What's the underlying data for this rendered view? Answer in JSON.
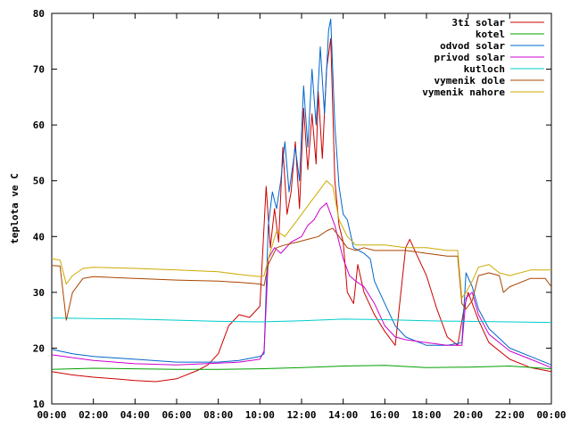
{
  "chart_data": {
    "type": "line",
    "title": "",
    "xlabel": "",
    "ylabel": "teplota ve C",
    "xlim": [
      0,
      24
    ],
    "ylim": [
      10,
      80
    ],
    "x_ticks": [
      {
        "value": 0,
        "label": "00:00"
      },
      {
        "value": 2,
        "label": "02:00"
      },
      {
        "value": 4,
        "label": "04:00"
      },
      {
        "value": 6,
        "label": "06:00"
      },
      {
        "value": 8,
        "label": "08:00"
      },
      {
        "value": 10,
        "label": "10:00"
      },
      {
        "value": 12,
        "label": "12:00"
      },
      {
        "value": 14,
        "label": "14:00"
      },
      {
        "value": 16,
        "label": "16:00"
      },
      {
        "value": 18,
        "label": "18:00"
      },
      {
        "value": 20,
        "label": "20:00"
      },
      {
        "value": 22,
        "label": "22:00"
      },
      {
        "value": 24,
        "label": "00:00"
      }
    ],
    "y_ticks": [
      10,
      20,
      30,
      40,
      50,
      60,
      70,
      80
    ],
    "grid": false,
    "legend_position": "top-right",
    "series": [
      {
        "name": "3ti solar",
        "color": "#cc0000",
        "points": [
          [
            0,
            15.8
          ],
          [
            1,
            15.2
          ],
          [
            2,
            14.8
          ],
          [
            3,
            14.5
          ],
          [
            4,
            14.2
          ],
          [
            5,
            14.0
          ],
          [
            6,
            14.5
          ],
          [
            7,
            16.0
          ],
          [
            7.5,
            17.0
          ],
          [
            8,
            19.0
          ],
          [
            8.5,
            24.0
          ],
          [
            9,
            26.0
          ],
          [
            9.5,
            25.5
          ],
          [
            10,
            27.5
          ],
          [
            10.3,
            49.0
          ],
          [
            10.5,
            38.0
          ],
          [
            10.7,
            45.0
          ],
          [
            10.9,
            39.0
          ],
          [
            11.1,
            56.0
          ],
          [
            11.3,
            44.0
          ],
          [
            11.5,
            48.0
          ],
          [
            11.7,
            57.0
          ],
          [
            11.9,
            45.0
          ],
          [
            12.1,
            63.0
          ],
          [
            12.3,
            52.0
          ],
          [
            12.5,
            62.0
          ],
          [
            12.7,
            53.0
          ],
          [
            12.8,
            66.0
          ],
          [
            13.0,
            54.0
          ],
          [
            13.2,
            70.0
          ],
          [
            13.4,
            75.5
          ],
          [
            13.6,
            50.0
          ],
          [
            13.8,
            42.0
          ],
          [
            14.0,
            39.0
          ],
          [
            14.2,
            30.0
          ],
          [
            14.5,
            28.0
          ],
          [
            14.7,
            35.0
          ],
          [
            15.0,
            30.0
          ],
          [
            15.5,
            26.0
          ],
          [
            16,
            23.0
          ],
          [
            16.5,
            20.5
          ],
          [
            17.0,
            38.0
          ],
          [
            17.2,
            39.5
          ],
          [
            17.5,
            37.0
          ],
          [
            18,
            33.0
          ],
          [
            18.5,
            27.0
          ],
          [
            19,
            22.0
          ],
          [
            19.5,
            20.5
          ],
          [
            19.8,
            27.0
          ],
          [
            20,
            30.0
          ],
          [
            20.5,
            25.0
          ],
          [
            21,
            21.0
          ],
          [
            22,
            18.0
          ],
          [
            23,
            16.5
          ],
          [
            24,
            15.8
          ]
        ]
      },
      {
        "name": "kotel",
        "color": "#00a000",
        "points": [
          [
            0,
            16.2
          ],
          [
            2,
            16.4
          ],
          [
            4,
            16.3
          ],
          [
            6,
            16.2
          ],
          [
            8,
            16.2
          ],
          [
            10,
            16.3
          ],
          [
            12,
            16.5
          ],
          [
            14,
            16.8
          ],
          [
            16,
            16.9
          ],
          [
            18,
            16.5
          ],
          [
            20,
            16.6
          ],
          [
            22,
            16.8
          ],
          [
            24,
            16.3
          ]
        ]
      },
      {
        "name": "odvod solar",
        "color": "#0066cc",
        "points": [
          [
            0,
            19.8
          ],
          [
            1,
            19.0
          ],
          [
            2,
            18.5
          ],
          [
            4,
            18.0
          ],
          [
            6,
            17.5
          ],
          [
            8,
            17.5
          ],
          [
            9,
            17.8
          ],
          [
            10,
            18.5
          ],
          [
            10.2,
            19.0
          ],
          [
            10.4,
            42.0
          ],
          [
            10.6,
            48.0
          ],
          [
            10.8,
            45.0
          ],
          [
            11.0,
            50.0
          ],
          [
            11.2,
            57.0
          ],
          [
            11.4,
            48.0
          ],
          [
            11.7,
            56.0
          ],
          [
            11.9,
            50.0
          ],
          [
            12.1,
            67.0
          ],
          [
            12.3,
            56.0
          ],
          [
            12.5,
            70.0
          ],
          [
            12.7,
            60.0
          ],
          [
            12.9,
            74.0
          ],
          [
            13.1,
            62.0
          ],
          [
            13.3,
            77.0
          ],
          [
            13.4,
            79.0
          ],
          [
            13.6,
            60.0
          ],
          [
            13.8,
            49.0
          ],
          [
            14.0,
            44.0
          ],
          [
            14.2,
            43.0
          ],
          [
            14.5,
            38.0
          ],
          [
            15.0,
            37.0
          ],
          [
            15.3,
            36.0
          ],
          [
            15.5,
            32.0
          ],
          [
            16,
            28.0
          ],
          [
            16.5,
            24.0
          ],
          [
            17,
            22.0
          ],
          [
            18,
            20.5
          ],
          [
            19,
            20.5
          ],
          [
            19.7,
            21.0
          ],
          [
            19.9,
            33.5
          ],
          [
            20.2,
            31.0
          ],
          [
            20.5,
            27.0
          ],
          [
            21,
            23.5
          ],
          [
            22,
            20.0
          ],
          [
            23,
            18.5
          ],
          [
            24,
            17.0
          ]
        ]
      },
      {
        "name": "privod solar",
        "color": "#cc00cc",
        "points": [
          [
            0,
            18.8
          ],
          [
            1,
            18.3
          ],
          [
            2,
            17.8
          ],
          [
            4,
            17.2
          ],
          [
            6,
            17.0
          ],
          [
            8,
            17.3
          ],
          [
            9,
            17.5
          ],
          [
            10,
            18.0
          ],
          [
            10.2,
            19.5
          ],
          [
            10.4,
            36.0
          ],
          [
            10.7,
            38.0
          ],
          [
            11.0,
            37.0
          ],
          [
            11.5,
            39.0
          ],
          [
            12.0,
            40.0
          ],
          [
            12.3,
            42.0
          ],
          [
            12.6,
            43.0
          ],
          [
            12.9,
            45.0
          ],
          [
            13.2,
            46.0
          ],
          [
            13.4,
            44.0
          ],
          [
            13.6,
            42.0
          ],
          [
            13.8,
            39.0
          ],
          [
            14.0,
            36.0
          ],
          [
            14.3,
            33.0
          ],
          [
            14.6,
            32.0
          ],
          [
            15.0,
            31.0
          ],
          [
            15.5,
            28.0
          ],
          [
            16,
            24.0
          ],
          [
            16.5,
            22.0
          ],
          [
            17,
            21.5
          ],
          [
            18,
            21.0
          ],
          [
            19,
            20.5
          ],
          [
            19.7,
            20.5
          ],
          [
            19.9,
            29.0
          ],
          [
            20.2,
            30.0
          ],
          [
            20.5,
            26.0
          ],
          [
            21,
            22.5
          ],
          [
            22,
            19.5
          ],
          [
            23,
            18.0
          ],
          [
            24,
            16.5
          ]
        ]
      },
      {
        "name": "kutloch",
        "color": "#00cccc",
        "points": [
          [
            0,
            25.4
          ],
          [
            4,
            25.2
          ],
          [
            8,
            24.8
          ],
          [
            10,
            24.7
          ],
          [
            12,
            24.9
          ],
          [
            14,
            25.2
          ],
          [
            16,
            25.1
          ],
          [
            18,
            24.9
          ],
          [
            20,
            24.8
          ],
          [
            22,
            24.7
          ],
          [
            24,
            24.6
          ]
        ]
      },
      {
        "name": "vymenik dole",
        "color": "#aa4400",
        "points": [
          [
            0,
            34.8
          ],
          [
            0.4,
            34.7
          ],
          [
            0.7,
            25.0
          ],
          [
            1.0,
            30.0
          ],
          [
            1.5,
            32.5
          ],
          [
            2,
            32.8
          ],
          [
            4,
            32.5
          ],
          [
            6,
            32.2
          ],
          [
            8,
            32.0
          ],
          [
            9,
            31.8
          ],
          [
            10,
            31.5
          ],
          [
            10.2,
            31.2
          ],
          [
            10.4,
            35.0
          ],
          [
            10.8,
            38.0
          ],
          [
            11.2,
            38.5
          ],
          [
            11.8,
            39.0
          ],
          [
            12.3,
            39.5
          ],
          [
            12.8,
            40.0
          ],
          [
            13.2,
            41.0
          ],
          [
            13.5,
            41.5
          ],
          [
            13.8,
            40.0
          ],
          [
            14.2,
            38.0
          ],
          [
            14.6,
            37.5
          ],
          [
            15,
            38.0
          ],
          [
            15.5,
            37.5
          ],
          [
            16,
            37.5
          ],
          [
            17,
            37.5
          ],
          [
            18,
            37.0
          ],
          [
            19,
            36.5
          ],
          [
            19.5,
            36.5
          ],
          [
            19.7,
            28.0
          ],
          [
            19.9,
            27.0
          ],
          [
            20.2,
            28.5
          ],
          [
            20.5,
            33.0
          ],
          [
            21,
            33.5
          ],
          [
            21.5,
            33.0
          ],
          [
            21.7,
            30.0
          ],
          [
            22,
            31.0
          ],
          [
            23,
            32.5
          ],
          [
            23.7,
            32.5
          ],
          [
            24,
            31.0
          ]
        ]
      },
      {
        "name": "vymenik nahore",
        "color": "#ccaa00",
        "points": [
          [
            0,
            36.0
          ],
          [
            0.4,
            35.8
          ],
          [
            0.7,
            31.5
          ],
          [
            1.0,
            33.0
          ],
          [
            1.5,
            34.3
          ],
          [
            2,
            34.5
          ],
          [
            4,
            34.3
          ],
          [
            6,
            34.0
          ],
          [
            8,
            33.7
          ],
          [
            9,
            33.2
          ],
          [
            10,
            32.8
          ],
          [
            10.2,
            33.0
          ],
          [
            10.4,
            36.0
          ],
          [
            10.8,
            41.0
          ],
          [
            11.2,
            40.0
          ],
          [
            11.6,
            42.0
          ],
          [
            12.0,
            44.0
          ],
          [
            12.4,
            46.0
          ],
          [
            12.8,
            48.0
          ],
          [
            13.2,
            50.0
          ],
          [
            13.5,
            49.0
          ],
          [
            13.8,
            43.0
          ],
          [
            14.2,
            40.0
          ],
          [
            14.6,
            38.5
          ],
          [
            15,
            38.5
          ],
          [
            16,
            38.5
          ],
          [
            17,
            38.0
          ],
          [
            18,
            38.0
          ],
          [
            19,
            37.5
          ],
          [
            19.5,
            37.5
          ],
          [
            19.7,
            29.0
          ],
          [
            19.9,
            30.0
          ],
          [
            20.2,
            32.0
          ],
          [
            20.5,
            34.5
          ],
          [
            21,
            35.0
          ],
          [
            21.5,
            33.5
          ],
          [
            22,
            33.0
          ],
          [
            23,
            34.0
          ],
          [
            24,
            34.0
          ]
        ]
      }
    ]
  }
}
